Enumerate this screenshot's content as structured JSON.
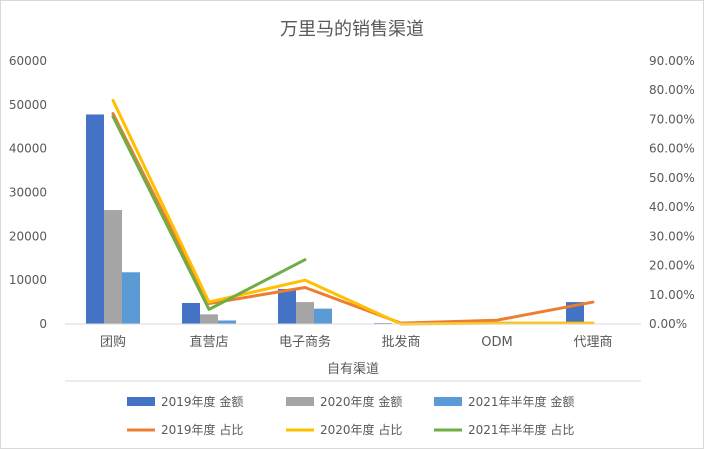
{
  "chart_data": {
    "type": "bar",
    "title": "万里马的销售渠道",
    "xlabel": "自有渠道",
    "categories": [
      "团购",
      "直营店",
      "电子商务",
      "批发商",
      "ODM",
      "代理商"
    ],
    "y_left": {
      "ylim": [
        0,
        60000
      ],
      "ticks": [
        "0",
        "10000",
        "20000",
        "30000",
        "40000",
        "50000",
        "60000"
      ]
    },
    "y_right": {
      "ylim": [
        0,
        90
      ],
      "unit": "%",
      "ticks": [
        "0.00%",
        "10.00%",
        "20.00%",
        "30.00%",
        "40.00%",
        "50.00%",
        "60.00%",
        "70.00%",
        "80.00%",
        "90.00%"
      ]
    },
    "bar_series": [
      {
        "name": "2019年度 金额",
        "color": "#4472C4",
        "values": [
          47800,
          4800,
          8000,
          200,
          0,
          5000
        ]
      },
      {
        "name": "2020年度 金额",
        "color": "#A5A5A5",
        "values": [
          26000,
          2200,
          5000,
          0,
          0,
          0
        ]
      },
      {
        "name": "2021年半年度 金额",
        "color": "#5B9BD5",
        "values": [
          11800,
          800,
          3500,
          0,
          0,
          0
        ]
      }
    ],
    "line_series": [
      {
        "name": "2019年度 占比",
        "color": "#ED7D31",
        "values": [
          72,
          7,
          12.5,
          0.3,
          1.3,
          7.5
        ],
        "count": 6
      },
      {
        "name": "2020年度 占比",
        "color": "#FFC000",
        "values": [
          76.5,
          7.5,
          15,
          0,
          0.3,
          0.3
        ],
        "count": 6
      },
      {
        "name": "2021年半年度 占比",
        "color": "#70AD47",
        "values": [
          71,
          5,
          22
        ],
        "count": 3
      }
    ],
    "legend_position": "bottom",
    "grid": false
  }
}
